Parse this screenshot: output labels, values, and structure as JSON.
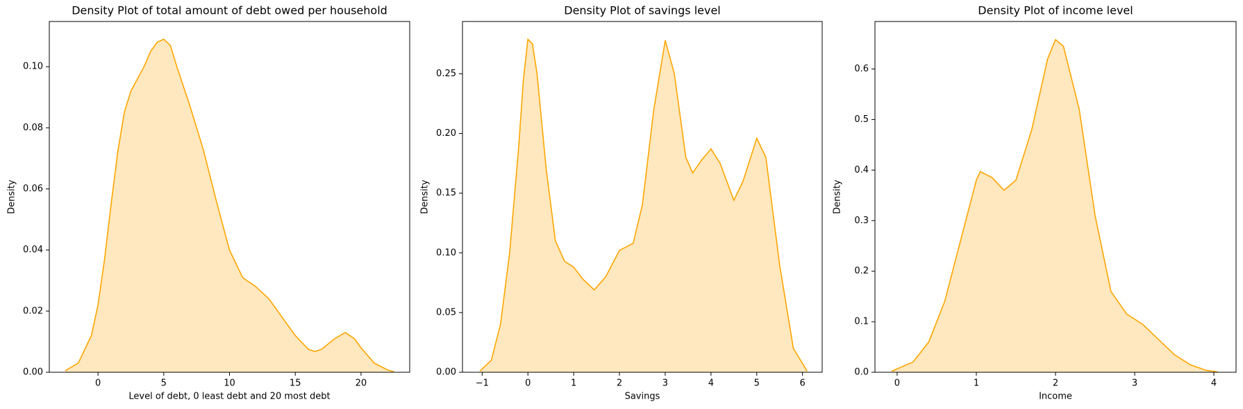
{
  "chart_data": [
    {
      "type": "area",
      "title": "Density Plot of total amount of debt owed per household",
      "x_label": "Level of debt, 0 least debt and 20 most debt",
      "y_label": "Density",
      "color": "#ffa500",
      "x": [
        -2.5,
        -1.5,
        -0.5,
        0,
        0.5,
        1,
        1.5,
        2,
        2.5,
        3,
        3.5,
        4,
        4.5,
        5,
        5.5,
        6,
        7,
        8,
        9,
        10,
        11,
        12,
        13,
        14,
        15,
        16,
        16.5,
        17,
        18,
        18.8,
        19.5,
        20,
        21,
        22,
        22.5
      ],
      "values": [
        0.0005,
        0.003,
        0.012,
        0.022,
        0.037,
        0.055,
        0.072,
        0.085,
        0.092,
        0.096,
        0.1,
        0.105,
        0.108,
        0.109,
        0.107,
        0.1,
        0.087,
        0.073,
        0.056,
        0.04,
        0.031,
        0.028,
        0.024,
        0.018,
        0.012,
        0.0075,
        0.0068,
        0.0075,
        0.011,
        0.013,
        0.011,
        0.008,
        0.003,
        0.0008,
        0.0002
      ],
      "xlim": [
        -3.7,
        23.7
      ],
      "ylim": [
        0,
        0.1148
      ],
      "xticks": [
        0,
        5,
        10,
        15,
        20
      ],
      "yticks": [
        {
          "value": 0,
          "label": "0.00"
        },
        {
          "value": 0.02,
          "label": "0.02"
        },
        {
          "value": 0.04,
          "label": "0.04"
        },
        {
          "value": 0.06,
          "label": "0.06"
        },
        {
          "value": 0.08,
          "label": "0.08"
        },
        {
          "value": 0.1,
          "label": "0.10"
        }
      ]
    },
    {
      "type": "area",
      "title": "Density Plot of savings level",
      "x_label": "Savings",
      "y_label": "Density",
      "color": "#ffa500",
      "x": [
        -1.05,
        -0.8,
        -0.6,
        -0.4,
        -0.2,
        -0.1,
        0,
        0.1,
        0.2,
        0.4,
        0.6,
        0.8,
        1,
        1.2,
        1.45,
        1.7,
        2,
        2.3,
        2.5,
        2.75,
        3,
        3.2,
        3.45,
        3.6,
        3.8,
        4,
        4.2,
        4.5,
        4.7,
        5,
        5.2,
        5.5,
        5.8,
        6.1
      ],
      "values": [
        0.001,
        0.01,
        0.04,
        0.1,
        0.19,
        0.245,
        0.279,
        0.275,
        0.25,
        0.17,
        0.11,
        0.093,
        0.088,
        0.078,
        0.069,
        0.08,
        0.102,
        0.108,
        0.14,
        0.22,
        0.278,
        0.25,
        0.18,
        0.167,
        0.178,
        0.187,
        0.175,
        0.144,
        0.16,
        0.196,
        0.18,
        0.09,
        0.02,
        0.001
      ],
      "xlim": [
        -1.43,
        6.43
      ],
      "ylim": [
        0,
        0.2938
      ],
      "xticks": [
        {
          "value": -1,
          "label": "−1"
        },
        0,
        1,
        2,
        3,
        4,
        5,
        6
      ],
      "yticks": [
        {
          "value": 0,
          "label": "0.00"
        },
        {
          "value": 0.05,
          "label": "0.05"
        },
        {
          "value": 0.1,
          "label": "0.10"
        },
        {
          "value": 0.15,
          "label": "0.15"
        },
        {
          "value": 0.2,
          "label": "0.20"
        },
        {
          "value": 0.25,
          "label": "0.25"
        }
      ]
    },
    {
      "type": "area",
      "title": "Density Plot of income level",
      "x_label": "Income",
      "y_label": "Density",
      "color": "#ffa500",
      "x": [
        -0.07,
        0.2,
        0.4,
        0.6,
        0.8,
        1,
        1.05,
        1.2,
        1.35,
        1.5,
        1.7,
        1.9,
        2,
        2.1,
        2.3,
        2.5,
        2.7,
        2.9,
        3.1,
        3.3,
        3.5,
        3.7,
        3.9,
        4.05
      ],
      "values": [
        0.002,
        0.02,
        0.06,
        0.14,
        0.26,
        0.38,
        0.397,
        0.385,
        0.36,
        0.38,
        0.48,
        0.62,
        0.658,
        0.645,
        0.52,
        0.31,
        0.16,
        0.115,
        0.095,
        0.065,
        0.035,
        0.015,
        0.004,
        0.0005
      ],
      "xlim": [
        -0.28,
        4.28
      ],
      "ylim": [
        0,
        0.694
      ],
      "xticks": [
        0,
        1,
        2,
        3,
        4
      ],
      "yticks": [
        {
          "value": 0,
          "label": "0.0"
        },
        {
          "value": 0.1,
          "label": "0.1"
        },
        {
          "value": 0.2,
          "label": "0.2"
        },
        {
          "value": 0.3,
          "label": "0.3"
        },
        {
          "value": 0.4,
          "label": "0.4"
        },
        {
          "value": 0.5,
          "label": "0.5"
        },
        {
          "value": 0.6,
          "label": "0.6"
        }
      ]
    }
  ]
}
